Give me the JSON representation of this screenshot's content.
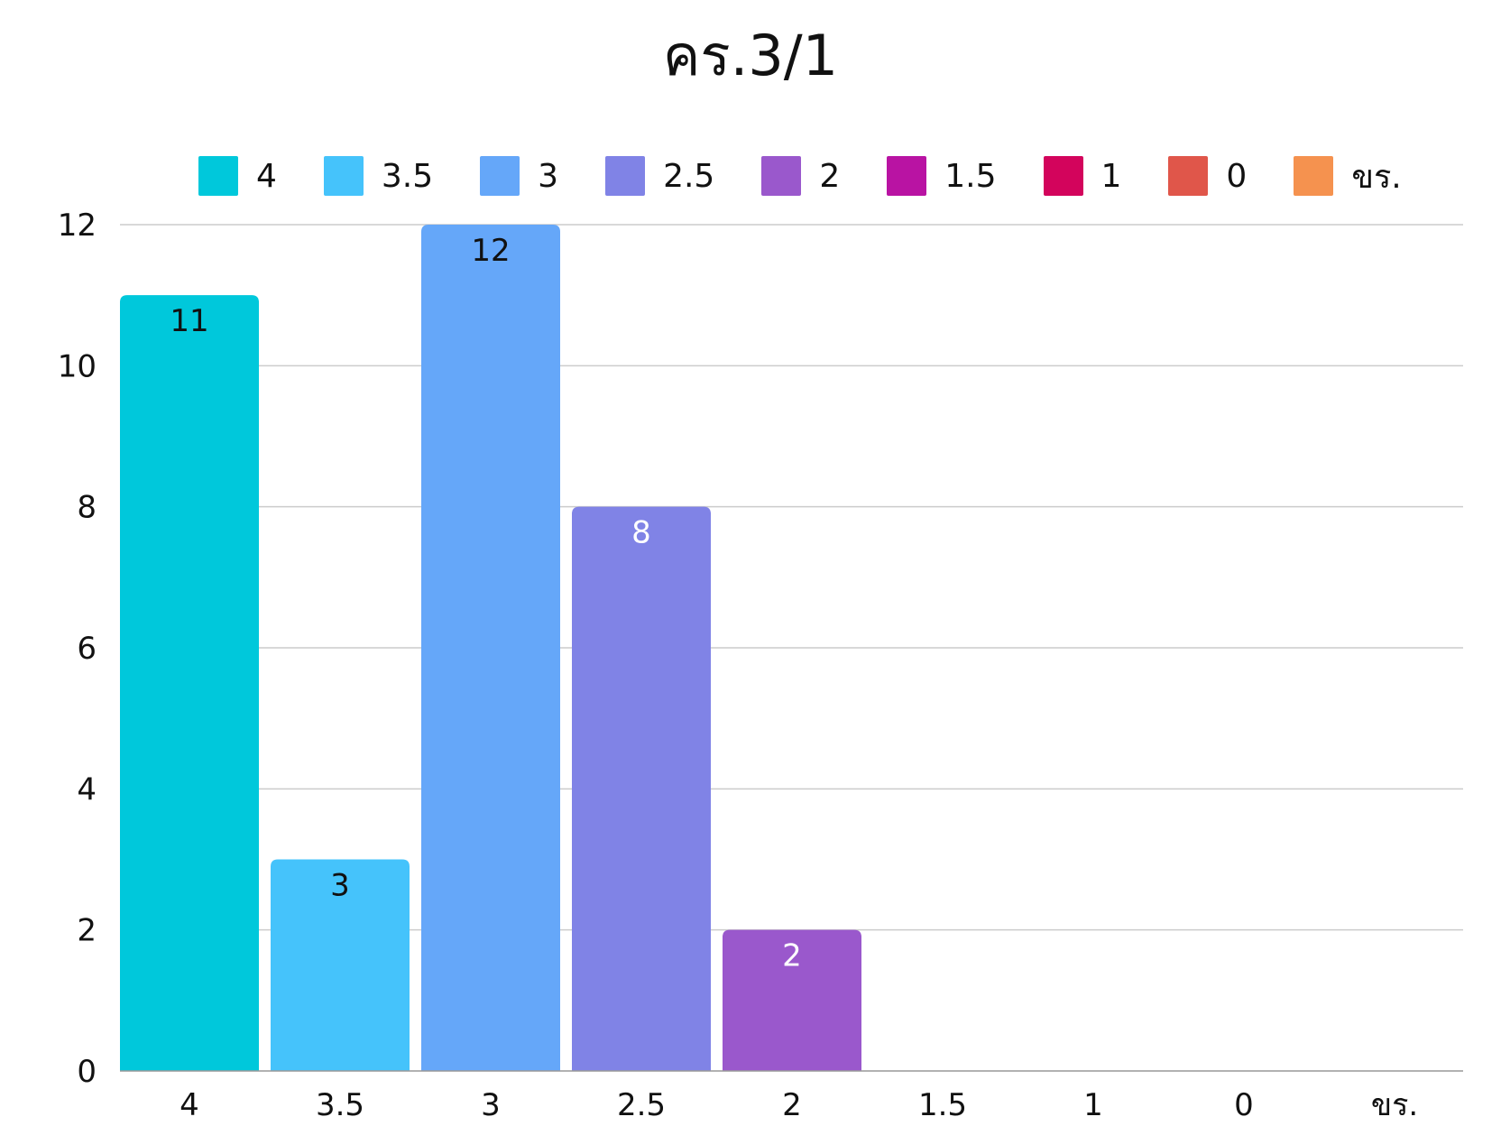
{
  "chart_data": {
    "type": "bar",
    "title": "คร.3/1",
    "xlabel": "",
    "ylabel": "",
    "categories": [
      "4",
      "3.5",
      "3",
      "2.5",
      "2",
      "1.5",
      "1",
      "0",
      "ขร."
    ],
    "values": [
      11,
      3,
      12,
      8,
      2,
      0,
      0,
      0,
      0
    ],
    "colors": [
      "#00c8db",
      "#45c3fb",
      "#65a7f9",
      "#8083e6",
      "#9a58cc",
      "#b913a3",
      "#d3045c",
      "#e0564a",
      "#f5924f"
    ],
    "data_label_colors": [
      "#111111",
      "#111111",
      "#111111",
      "#ffffff",
      "#ffffff",
      "#ffffff",
      "#ffffff",
      "#ffffff",
      "#ffffff"
    ],
    "ylim": [
      0,
      12
    ],
    "yticks": [
      0,
      2,
      4,
      6,
      8,
      10,
      12
    ],
    "grid": true,
    "gridline_color": "#cccccc",
    "legend_position": "top",
    "legend": [
      "4",
      "3.5",
      "3",
      "2.5",
      "2",
      "1.5",
      "1",
      "0",
      "ขร."
    ]
  }
}
